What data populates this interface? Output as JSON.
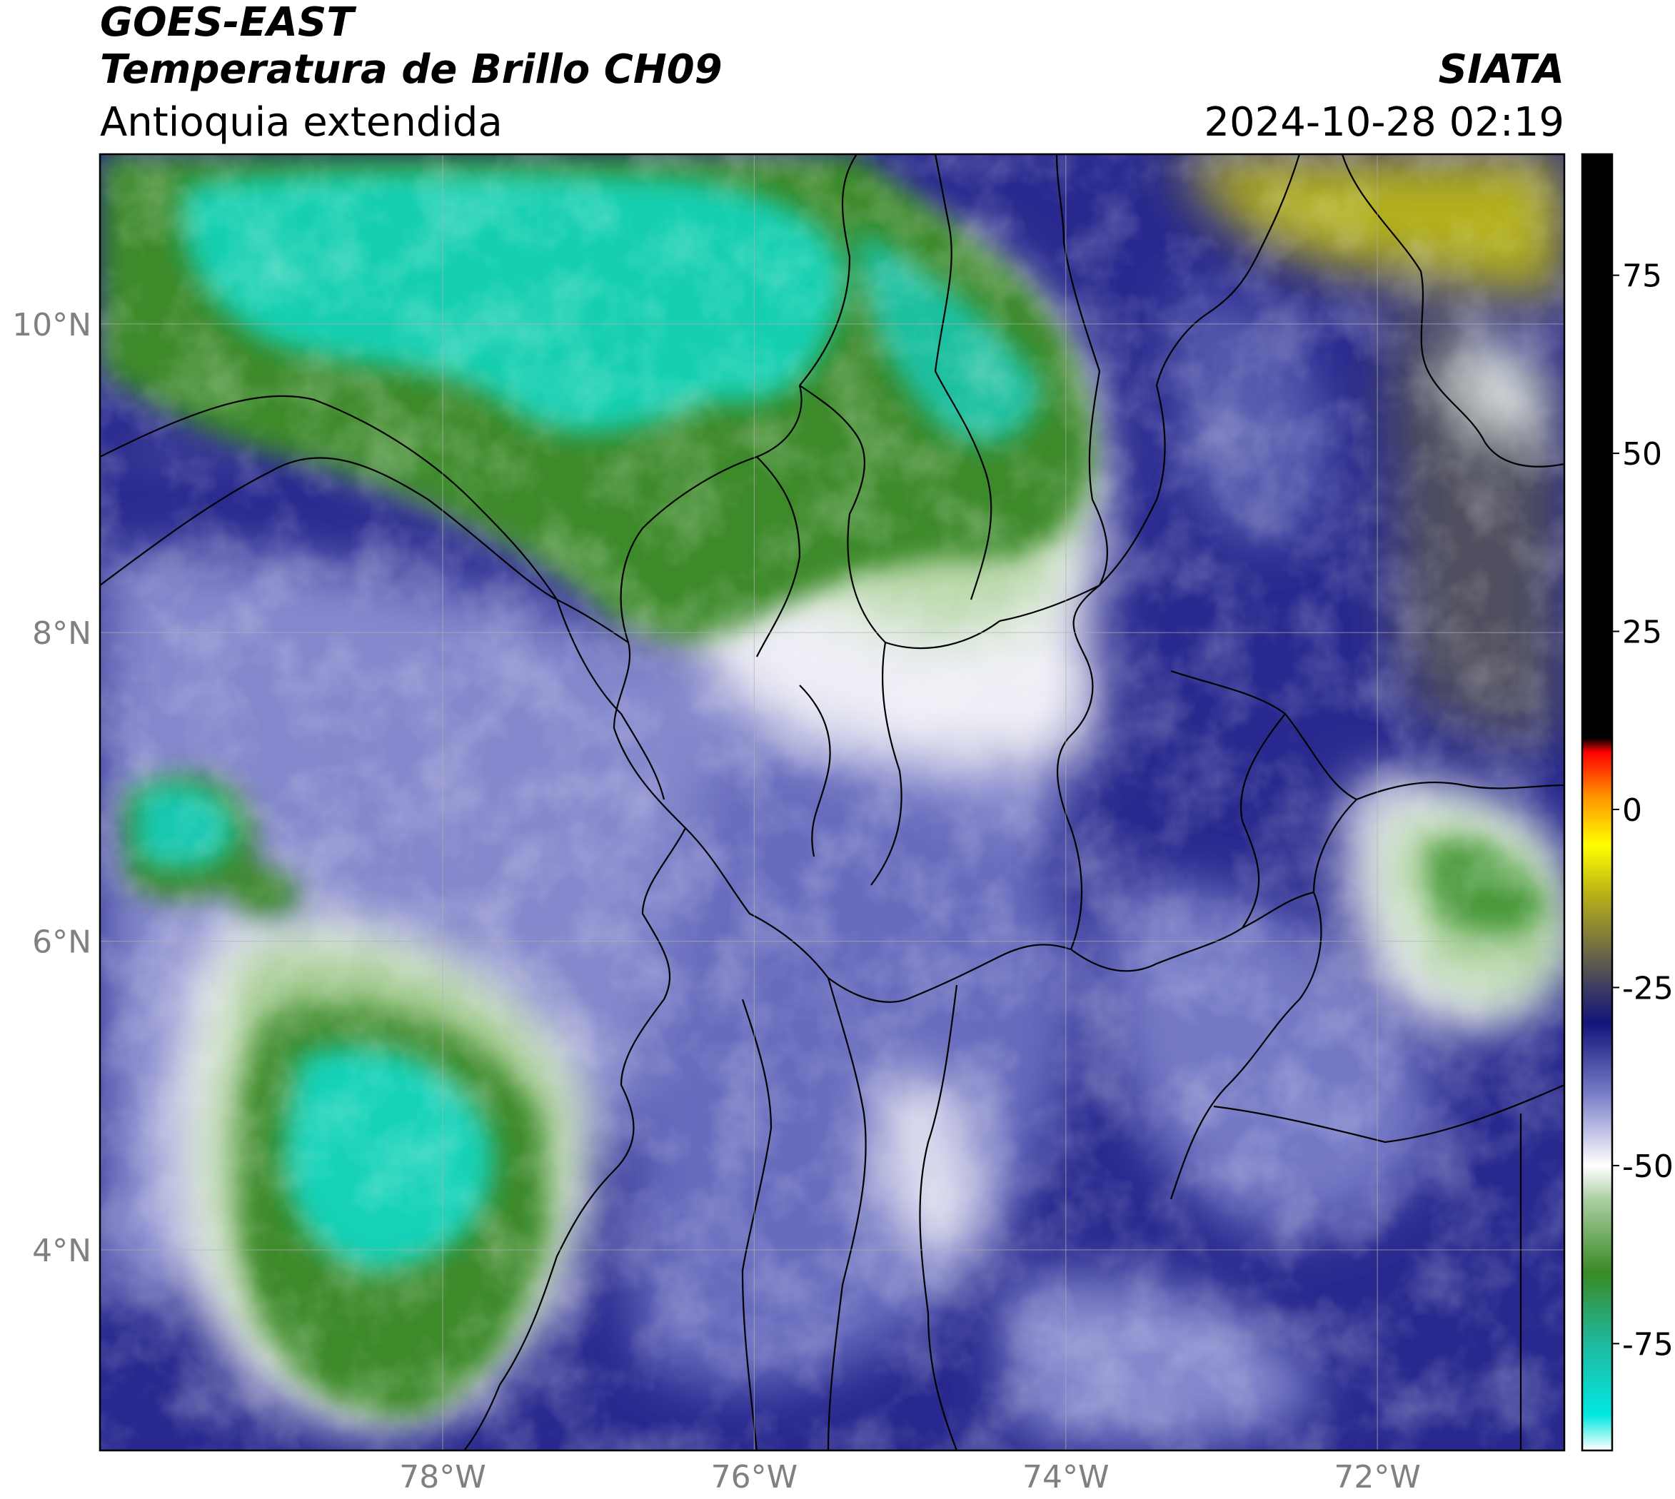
{
  "header": {
    "satellite": "GOES-EAST",
    "product": "Temperatura de Brillo CH09",
    "region": "Antioquia extendida",
    "organization": "SIATA",
    "datetime": "2024-10-28 02:19"
  },
  "map": {
    "lon_range": [
      -80.2,
      -70.8
    ],
    "lat_range": [
      2.7,
      11.1
    ],
    "lat_ticks": [
      {
        "value": 10,
        "label": "10°N"
      },
      {
        "value": 8,
        "label": "8°N"
      },
      {
        "value": 6,
        "label": "6°N"
      },
      {
        "value": 4,
        "label": "4°N"
      }
    ],
    "lon_ticks": [
      {
        "value": -78,
        "label": "78°W"
      },
      {
        "value": -76,
        "label": "76°W"
      },
      {
        "value": -74,
        "label": "74°W"
      },
      {
        "value": -72,
        "label": "72°W"
      }
    ],
    "grid": true
  },
  "colorbar": {
    "orientation": "vertical",
    "range": [
      -90,
      92
    ],
    "ticks": [
      {
        "value": 75,
        "label": "75"
      },
      {
        "value": 50,
        "label": "50"
      },
      {
        "value": 25,
        "label": "25"
      },
      {
        "value": 0,
        "label": "0"
      },
      {
        "value": -25,
        "label": "-25"
      },
      {
        "value": -50,
        "label": "-50"
      },
      {
        "value": -75,
        "label": "-75"
      }
    ],
    "color_stops": [
      {
        "value": -90,
        "color": "#ffffff"
      },
      {
        "value": -85,
        "color": "#00e8e0"
      },
      {
        "value": -75,
        "color": "#20b8a0"
      },
      {
        "value": -65,
        "color": "#3a8a24"
      },
      {
        "value": -55,
        "color": "#a8cca0"
      },
      {
        "value": -50,
        "color": "#ffffff"
      },
      {
        "value": -40,
        "color": "#7a7ec8"
      },
      {
        "value": -30,
        "color": "#14147a"
      },
      {
        "value": -25,
        "color": "#3c3c62"
      },
      {
        "value": -12,
        "color": "#b8b018"
      },
      {
        "value": -5,
        "color": "#ffff00"
      },
      {
        "value": 2,
        "color": "#ff9000"
      },
      {
        "value": 8,
        "color": "#ff0000"
      },
      {
        "value": 10,
        "color": "#000000"
      },
      {
        "value": 92,
        "color": "#000000"
      }
    ]
  }
}
